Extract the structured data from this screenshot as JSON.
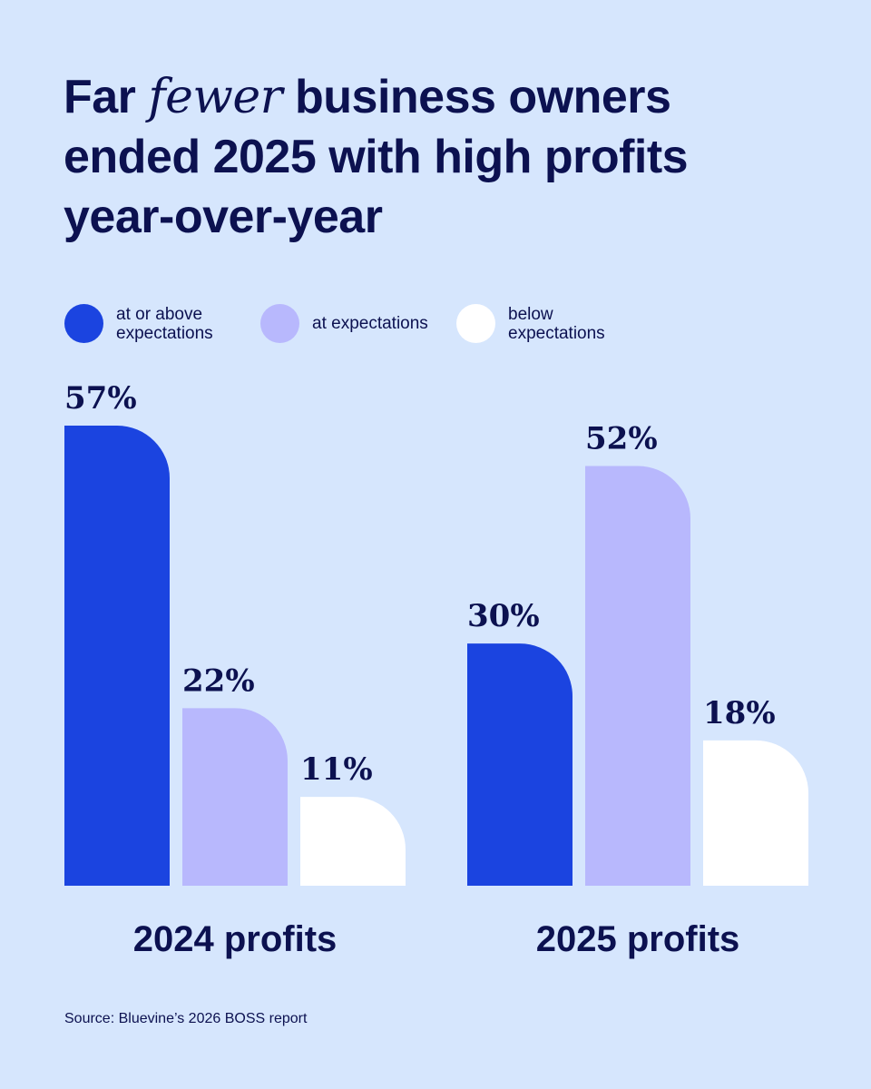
{
  "title": {
    "part1": "Far ",
    "emphasis": "fewer",
    "part2": " business owners ended 2025 with high profits year-over-year"
  },
  "legend": [
    {
      "label": "at or above expectations",
      "color": "#1b44e0"
    },
    {
      "label": "at expectations",
      "color": "#b8b8fd"
    },
    {
      "label": "below expectations",
      "color": "#ffffff"
    }
  ],
  "chart_data": {
    "type": "bar",
    "title": "Far fewer business owners ended 2025 with high profits year-over-year",
    "categories": [
      "2024 profits",
      "2025 profits"
    ],
    "series": [
      {
        "name": "at or above expectations",
        "color": "#1b44e0",
        "values": [
          57,
          30
        ],
        "labels": [
          "57%",
          "30%"
        ]
      },
      {
        "name": "at expectations",
        "color": "#b8b8fd",
        "values": [
          22,
          52
        ],
        "labels": [
          "22%",
          "52%"
        ]
      },
      {
        "name": "below expectations",
        "color": "#ffffff",
        "values": [
          11,
          18
        ],
        "labels": [
          "11%",
          "18%"
        ]
      }
    ],
    "unit": "%",
    "ylim": [
      0,
      60
    ],
    "grid": false,
    "legend_position": "top-left"
  },
  "source": "Source: Bluevine’s 2026 BOSS report"
}
